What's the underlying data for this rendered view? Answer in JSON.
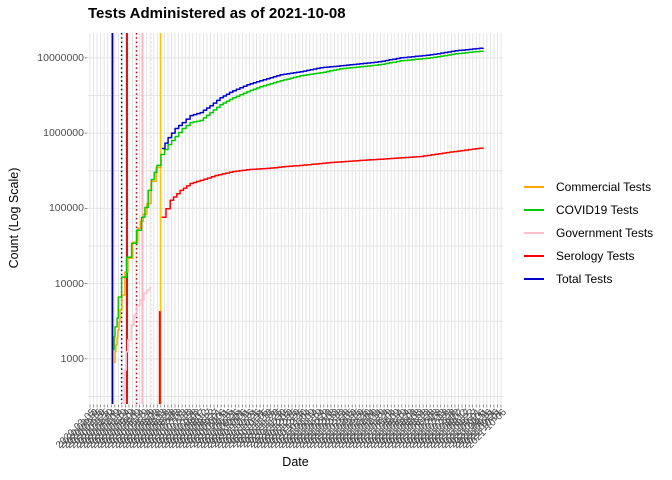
{
  "title": "Tests Administered as of 2021-10-08",
  "y_axis": {
    "label": "Count (Log Scale)",
    "ticks": [
      "10000000",
      "1000000",
      "100000",
      "10000",
      "1000"
    ],
    "tick_values": [
      10000000,
      1000000,
      100000,
      10000,
      1000
    ]
  },
  "x_axis": {
    "label": "Date",
    "labels": [
      "2020-03-05",
      "2020-03-10",
      "2020-03-15",
      "2020-03-20",
      "2020-03-25",
      "2020-03-30",
      "2020-04-04",
      "2020-04-09",
      "2020-04-14",
      "2020-04-19",
      "2020-04-24",
      "2020-04-29",
      "2020-05-04",
      "2020-05-09",
      "2020-05-14",
      "2020-05-19",
      "2020-05-24",
      "2020-05-29",
      "2020-06-03",
      "2020-06-08",
      "2020-06-13",
      "2020-06-18",
      "2020-06-23",
      "2020-06-28",
      "2020-07-03",
      "2020-07-08",
      "2020-07-13",
      "2020-07-18",
      "2020-07-23",
      "2020-07-28",
      "2020-08-02",
      "2020-08-07",
      "2020-08-12",
      "2020-08-17",
      "2020-08-22",
      "2020-08-27",
      "2020-09-01",
      "2020-09-06",
      "2020-09-11",
      "2020-09-16",
      "2020-09-21",
      "2020-09-26",
      "2020-10-01",
      "2020-10-06",
      "2020-10-11",
      "2020-10-16",
      "2020-10-21",
      "2020-10-26",
      "2020-10-31",
      "2020-11-05",
      "2020-11-10",
      "2020-11-15",
      "2020-11-20",
      "2020-11-25",
      "2020-11-30",
      "2020-12-05",
      "2020-12-10",
      "2020-12-15",
      "2020-12-20",
      "2020-12-25",
      "2020-12-30",
      "2021-01-04",
      "2021-01-09",
      "2021-01-14",
      "2021-01-19",
      "2021-01-24",
      "2021-01-29",
      "2021-02-03",
      "2021-02-08",
      "2021-02-13",
      "2021-02-18",
      "2021-02-23",
      "2021-02-28",
      "2021-03-05",
      "2021-03-10",
      "2021-03-15",
      "2021-03-20",
      "2021-03-25",
      "2021-03-30",
      "2021-04-04",
      "2021-04-09",
      "2021-04-14",
      "2021-04-19",
      "2021-04-24",
      "2021-04-29",
      "2021-05-04",
      "2021-05-09",
      "2021-05-14",
      "2021-05-19",
      "2021-05-24",
      "2021-05-29",
      "2021-06-03",
      "2021-06-08",
      "2021-06-13",
      "2021-06-18",
      "2021-06-23",
      "2021-06-28",
      "2021-07-03",
      "2021-07-08",
      "2021-07-13",
      "2021-07-18",
      "2021-07-23",
      "2021-07-28",
      "2021-08-02",
      "2021-08-07",
      "2021-08-12",
      "2021-08-17",
      "2021-08-22",
      "2021-08-27",
      "2021-09-01",
      "2021-09-06",
      "2021-09-11",
      "2021-09-16",
      "2021-09-21",
      "2021-09-26",
      "2021-10-01",
      "2021-10-06"
    ]
  },
  "legend": {
    "items": [
      {
        "label": "Commercial Tests",
        "color": "#FFA500"
      },
      {
        "label": "COVID19 Tests",
        "color": "#00CC00"
      },
      {
        "label": "Government Tests",
        "color": "#FFC0CB"
      },
      {
        "label": "Serology Tests",
        "color": "#FF0000"
      },
      {
        "label": "Total Tests",
        "color": "#0000CD"
      }
    ]
  },
  "chart_data": {
    "type": "line",
    "title": "Tests Administered as of 2021-10-08",
    "xlabel": "Date",
    "ylabel": "Count (Log Scale)",
    "y_scale": "log10",
    "ylim_exp": [
      2.4,
      7.33
    ],
    "x_range": [
      "2020-03-05",
      "2021-10-08"
    ],
    "grid": "major-and-minor, one vertical gridline per date",
    "legend_position": "right",
    "x_frac_note": "x values are fractions across the date axis; 0 = 2020-03 left edge, 1 = right edge of panel",
    "series": [
      {
        "name": "Government Tests",
        "color": "#FFC0CB",
        "points": [
          [
            0.08,
            260
          ],
          [
            0.087,
            710
          ],
          [
            0.092,
            1240
          ],
          [
            0.096,
            1790
          ],
          [
            0.104,
            2820
          ],
          [
            0.111,
            3830
          ],
          [
            0.118,
            5040
          ],
          [
            0.125,
            6040
          ],
          [
            0.135,
            7480
          ],
          [
            0.142,
            8200
          ],
          [
            0.149,
            9000
          ]
        ]
      },
      {
        "name": "Commercial Tests",
        "color": "#FFA500",
        "points": [
          [
            0.063,
            900
          ],
          [
            0.065,
            1240
          ],
          [
            0.067,
            1530
          ],
          [
            0.07,
            1900
          ],
          [
            0.072,
            2420
          ],
          [
            0.075,
            3090
          ],
          [
            0.077,
            4460
          ],
          [
            0.082,
            7030
          ],
          [
            0.089,
            14200
          ],
          [
            0.096,
            21800
          ],
          [
            0.108,
            35500
          ],
          [
            0.12,
            54300
          ],
          [
            0.133,
            83400
          ],
          [
            0.142,
            116000
          ],
          [
            0.152,
            228000
          ],
          [
            0.164,
            349000
          ],
          [
            0.176,
            459000
          ]
        ]
      },
      {
        "name": "COVID19 Tests",
        "color": "#00CC00",
        "points": [
          [
            0.06,
            1320
          ],
          [
            0.063,
            1950
          ],
          [
            0.065,
            2660
          ],
          [
            0.07,
            3490
          ],
          [
            0.073,
            6620
          ],
          [
            0.081,
            12200
          ],
          [
            0.093,
            22400
          ],
          [
            0.105,
            34400
          ],
          [
            0.117,
            51200
          ],
          [
            0.129,
            76000
          ],
          [
            0.137,
            103000
          ],
          [
            0.145,
            173000
          ],
          [
            0.153,
            242000
          ],
          [
            0.166,
            372000
          ],
          [
            0.176,
            520000
          ],
          [
            0.193,
            704000
          ],
          [
            0.21,
            900000
          ],
          [
            0.227,
            1150000
          ],
          [
            0.246,
            1380000
          ],
          [
            0.27,
            1470000
          ],
          [
            0.294,
            1870000
          ],
          [
            0.318,
            2380000
          ],
          [
            0.349,
            2950000
          ],
          [
            0.383,
            3550000
          ],
          [
            0.414,
            4130000
          ],
          [
            0.463,
            4960000
          ],
          [
            0.511,
            5780000
          ],
          [
            0.559,
            6320000
          ],
          [
            0.607,
            7150000
          ],
          [
            0.655,
            7600000
          ],
          [
            0.699,
            8070000
          ],
          [
            0.752,
            9120000
          ],
          [
            0.824,
            10000000
          ],
          [
            0.884,
            11300000
          ],
          [
            0.952,
            12400000
          ]
        ]
      },
      {
        "name": "Serology Tests",
        "color": "#FF0000",
        "points": [
          [
            0.178,
            76000
          ],
          [
            0.198,
            128000
          ],
          [
            0.222,
            173000
          ],
          [
            0.246,
            214000
          ],
          [
            0.27,
            235000
          ],
          [
            0.306,
            273000
          ],
          [
            0.349,
            309000
          ],
          [
            0.39,
            329000
          ],
          [
            0.431,
            339000
          ],
          [
            0.475,
            360000
          ],
          [
            0.511,
            372000
          ],
          [
            0.583,
            406000
          ],
          [
            0.655,
            433000
          ],
          [
            0.728,
            459000
          ],
          [
            0.8,
            489000
          ],
          [
            0.872,
            560000
          ],
          [
            0.952,
            640000
          ]
        ]
      },
      {
        "name": "Total Tests",
        "color": "#0000CD",
        "points": [
          [
            0.178,
            624000
          ],
          [
            0.193,
            871000
          ],
          [
            0.21,
            1150000
          ],
          [
            0.227,
            1380000
          ],
          [
            0.246,
            1710000
          ],
          [
            0.27,
            1870000
          ],
          [
            0.294,
            2310000
          ],
          [
            0.318,
            2950000
          ],
          [
            0.349,
            3660000
          ],
          [
            0.383,
            4390000
          ],
          [
            0.414,
            4960000
          ],
          [
            0.463,
            5960000
          ],
          [
            0.511,
            6530000
          ],
          [
            0.559,
            7380000
          ],
          [
            0.607,
            7830000
          ],
          [
            0.655,
            8340000
          ],
          [
            0.699,
            8850000
          ],
          [
            0.752,
            10000000
          ],
          [
            0.824,
            10960000
          ],
          [
            0.884,
            12400000
          ],
          [
            0.952,
            13550000
          ]
        ]
      }
    ],
    "extra_segments": [
      {
        "name": "serology-initial-jump",
        "color": "#FF0000",
        "width": 2,
        "points": [
          [
            0.173,
            250
          ],
          [
            0.173,
            4300
          ]
        ]
      }
    ],
    "vlines": [
      {
        "x_frac": 0.059,
        "color": "#00008B",
        "style": "solid"
      },
      {
        "x_frac": 0.081,
        "color": "#00008B",
        "style": "dotted"
      },
      {
        "x_frac": 0.094,
        "color": "#CC0000",
        "style": "solid"
      },
      {
        "x_frac": 0.117,
        "color": "#CC0000",
        "style": "dotted"
      },
      {
        "x_frac": 0.131,
        "color": "#FFB6C1",
        "style": "solid"
      },
      {
        "x_frac": 0.153,
        "color": "#FFD9E0",
        "style": "dotted"
      },
      {
        "x_frac": 0.175,
        "color": "#FFC800",
        "style": "solid"
      }
    ]
  }
}
